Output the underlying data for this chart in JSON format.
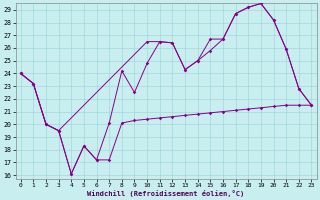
{
  "xlabel": "Windchill (Refroidissement éolien,°C)",
  "background_color": "#c8eef0",
  "grid_color": "#a0d8dc",
  "line_color": "#880088",
  "xlim_min": -0.4,
  "xlim_max": 23.4,
  "ylim_min": 15.7,
  "ylim_max": 29.5,
  "yticks": [
    16,
    17,
    18,
    19,
    20,
    21,
    22,
    23,
    24,
    25,
    26,
    27,
    28,
    29
  ],
  "xticks": [
    0,
    1,
    2,
    3,
    4,
    5,
    6,
    7,
    8,
    9,
    10,
    11,
    12,
    13,
    14,
    15,
    16,
    17,
    18,
    19,
    20,
    21,
    22,
    23
  ],
  "s1_x": [
    0,
    1,
    2,
    3,
    4,
    5,
    6,
    7,
    8,
    9,
    10,
    11,
    12,
    13,
    14,
    15,
    16,
    17,
    18,
    19,
    20,
    21,
    22,
    23
  ],
  "s1_y": [
    24.0,
    23.2,
    20.0,
    19.5,
    16.1,
    18.3,
    17.2,
    17.2,
    20.1,
    20.3,
    20.4,
    20.5,
    20.6,
    20.7,
    20.8,
    20.9,
    21.0,
    21.1,
    21.2,
    21.3,
    21.4,
    21.5,
    21.5,
    21.5
  ],
  "s2_x": [
    0,
    1,
    2,
    3,
    4,
    5,
    6,
    7,
    8,
    9,
    10,
    11,
    12,
    13,
    14,
    15,
    16,
    17,
    18,
    19,
    20,
    21,
    22,
    23
  ],
  "s2_y": [
    24.0,
    23.2,
    20.0,
    19.5,
    16.1,
    18.3,
    17.2,
    20.1,
    24.2,
    22.5,
    24.8,
    26.5,
    26.4,
    24.3,
    25.0,
    25.8,
    26.7,
    28.7,
    29.2,
    29.5,
    28.2,
    25.9,
    22.8,
    21.5
  ],
  "s3_x": [
    0,
    1,
    2,
    3,
    10,
    11,
    12,
    13,
    14,
    15,
    16,
    17,
    18,
    19,
    20,
    21,
    22,
    23
  ],
  "s3_y": [
    24.0,
    23.2,
    20.0,
    19.5,
    26.5,
    26.5,
    26.4,
    24.3,
    25.0,
    26.7,
    26.7,
    28.7,
    29.2,
    29.5,
    28.2,
    25.9,
    22.8,
    21.5
  ]
}
